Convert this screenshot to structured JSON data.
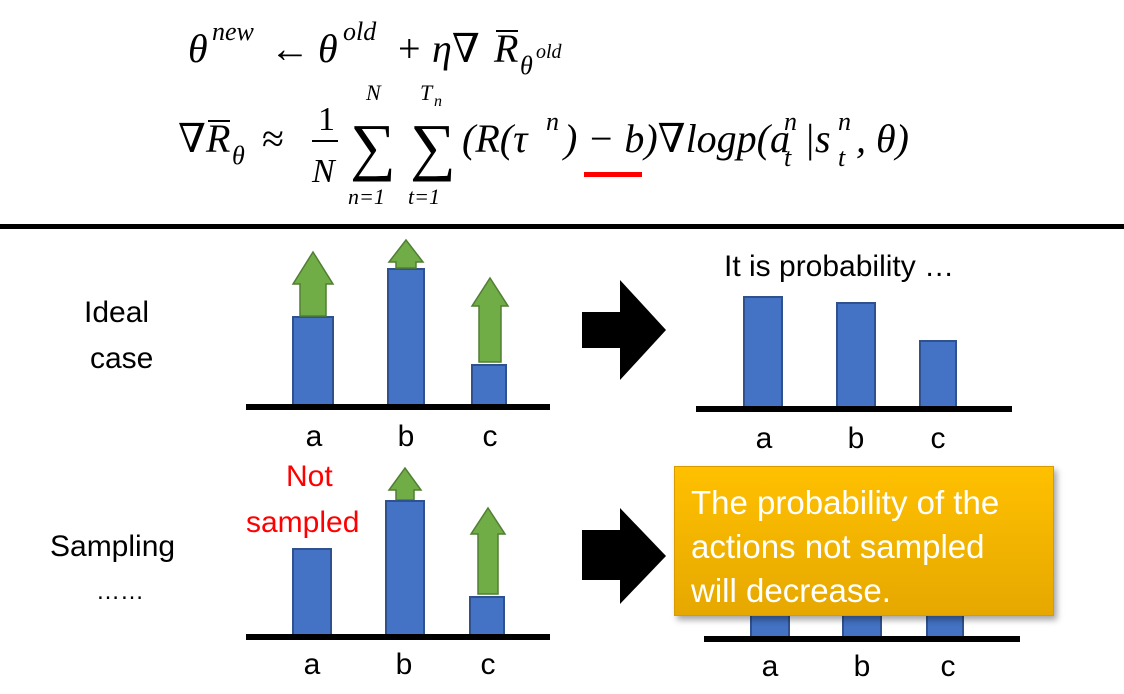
{
  "formula": {
    "line1": "θ^new ← θ^old + η∇R̄_θ^old",
    "line2": "∇R̄_θ ≈ (1/N) Σ_{n=1}^{N} Σ_{t=1}^{T_n} (R(τ^n) − b) ∇logp(a_t^n | s_t^n, θ)"
  },
  "rows": {
    "ideal_label": [
      "Ideal",
      "case"
    ],
    "sampling_label": [
      "Sampling",
      "……"
    ]
  },
  "panel_titles": {
    "ideal_right": "It is probability …"
  },
  "annotations": {
    "not_sampled": [
      "Not",
      "sampled"
    ]
  },
  "categories": [
    "a",
    "b",
    "c"
  ],
  "callout": {
    "text": [
      "The probability of the",
      "actions not sampled",
      "will decrease."
    ]
  },
  "colors": {
    "bar": "#4472c4",
    "arrow_up": "#70ad47",
    "highlight": "#ff0000",
    "callout_bg": "#ffc000"
  }
}
